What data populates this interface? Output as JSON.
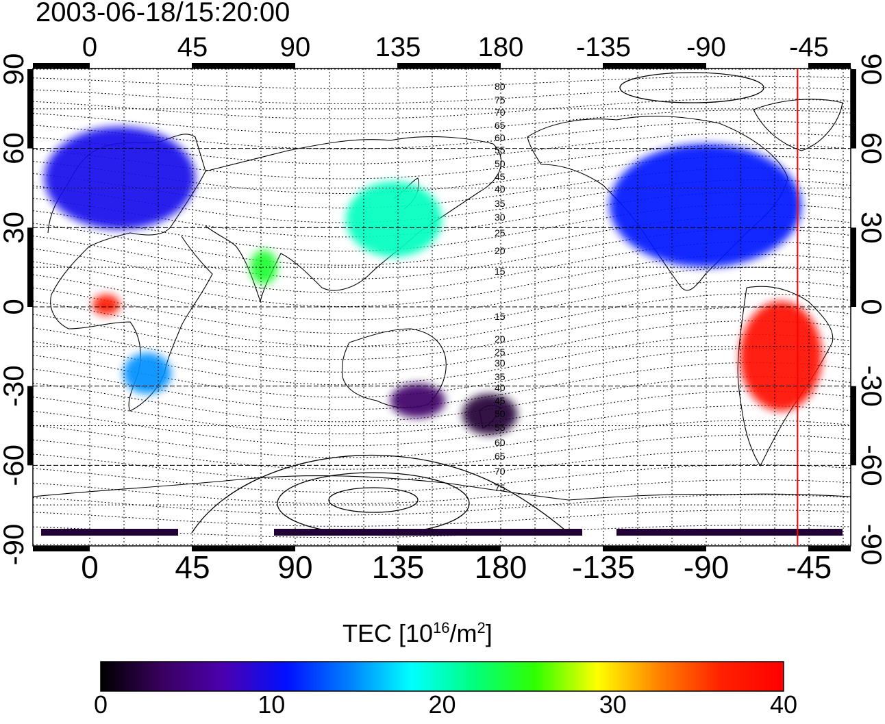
{
  "timestamp": "2003-06-18/15:20:00",
  "map": {
    "lon_ticks": [
      "0",
      "45",
      "90",
      "135",
      "180",
      "-135",
      "-90",
      "-45"
    ],
    "lat_ticks": [
      "90",
      "60",
      "30",
      "0",
      "-30",
      "-60",
      "-90"
    ],
    "magnetic_latitude_labels_north": [
      "80",
      "75",
      "70",
      "65",
      "60",
      "55",
      "50",
      "45",
      "40",
      "35",
      "30",
      "25",
      "20",
      "15"
    ],
    "magnetic_latitude_labels_south": [
      "15",
      "20",
      "25",
      "30",
      "35",
      "40",
      "45",
      "50",
      "55",
      "60",
      "65",
      "70",
      "75"
    ],
    "terminator_longitude": -50,
    "grid": true
  },
  "colorbar": {
    "label_main": "TEC  [10",
    "label_exp1": "16",
    "label_mid": "/m",
    "label_exp2": "2",
    "label_end": "]",
    "ticks": [
      "0",
      "10",
      "20",
      "30",
      "40"
    ],
    "range": [
      0,
      40
    ],
    "colors": [
      "#000000",
      "#3a0060",
      "#4b00b0",
      "#0010ff",
      "#0080ff",
      "#00ffff",
      "#00ff80",
      "#30ff00",
      "#ffff00",
      "#ff8000",
      "#ff2000",
      "#ff0000"
    ]
  },
  "tec_regions": [
    {
      "name": "europe",
      "tec": 10
    },
    {
      "name": "north-america",
      "tec": 11
    },
    {
      "name": "east-asia",
      "tec": 20
    },
    {
      "name": "south-america",
      "tec": 39
    },
    {
      "name": "south-africa",
      "tec": 15
    },
    {
      "name": "australia",
      "tec": 4
    },
    {
      "name": "new-zealand",
      "tec": 2
    },
    {
      "name": "antarctica",
      "tec": 2
    },
    {
      "name": "west-africa",
      "tec": 38
    },
    {
      "name": "india",
      "tec": 24
    }
  ]
}
